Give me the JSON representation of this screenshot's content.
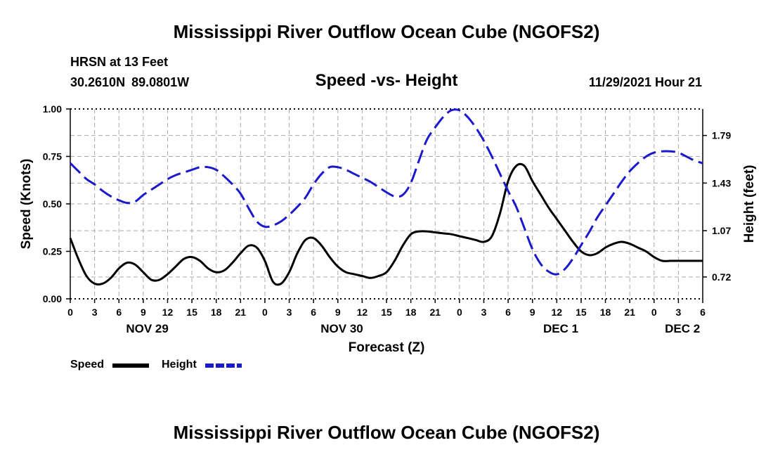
{
  "header": {
    "title": "Mississippi River Outflow Ocean Cube (NGOFS2)",
    "station": "HRSN at 13 Feet",
    "coords": "30.2610N  89.0801W",
    "subtitle": "Speed -vs- Height",
    "datetime": "11/29/2021 Hour 21"
  },
  "footer": {
    "title": "Mississippi River Outflow Ocean Cube (NGOFS2)"
  },
  "legend": {
    "speed_label": "Speed",
    "height_label": "Height"
  },
  "colors": {
    "speed": "#000000",
    "height": "#1a1acc",
    "grid": "#aaaaaa"
  },
  "chart_data": {
    "type": "line",
    "title": "Speed -vs- Height",
    "xlabel": "Forecast (Z)",
    "ylabel": "Speed (Knots)",
    "y2label": "Height (feet)",
    "xlim": [
      0,
      78
    ],
    "ylim": [
      0,
      1
    ],
    "y2lim": [
      0.555,
      1.99
    ],
    "x_ticks": [
      0,
      3,
      6,
      9,
      12,
      15,
      18,
      21,
      24,
      27,
      30,
      33,
      36,
      39,
      42,
      45,
      48,
      51,
      54,
      57,
      60,
      63,
      66,
      69,
      72,
      75,
      78
    ],
    "x_tick_labels": [
      "0",
      "3",
      "6",
      "9",
      "12",
      "15",
      "18",
      "21",
      "0",
      "3",
      "6",
      "9",
      "12",
      "15",
      "18",
      "21",
      "0",
      "3",
      "6",
      "9",
      "12",
      "15",
      "18",
      "21",
      "0",
      "3",
      "6"
    ],
    "day_labels": [
      {
        "x": 9.5,
        "label": "NOV 29"
      },
      {
        "x": 33.5,
        "label": "NOV 30"
      },
      {
        "x": 60.5,
        "label": "DEC 1"
      },
      {
        "x": 75.5,
        "label": "DEC 2"
      }
    ],
    "y_ticks": [
      0,
      0.25,
      0.5,
      0.75,
      1.0
    ],
    "y_tick_labels": [
      "0.00",
      "0.25",
      "0.50",
      "0.75",
      "1.00"
    ],
    "y2_ticks": [
      0.72,
      1.07,
      1.43,
      1.79
    ],
    "y2_tick_labels": [
      "0.72",
      "1.07",
      "1.43",
      "1.79"
    ],
    "grid": true,
    "series": [
      {
        "name": "Speed",
        "axis": "left",
        "style": "solid",
        "x": [
          0,
          1,
          2,
          3,
          4,
          5,
          6,
          7,
          8,
          9,
          10,
          11,
          12,
          13,
          14,
          15,
          16,
          17,
          18,
          19,
          20,
          21,
          22,
          23,
          24,
          25,
          26,
          27,
          28,
          29,
          30,
          31,
          32,
          33,
          34,
          35,
          36,
          37,
          38,
          39,
          40,
          41,
          42,
          43,
          44,
          45,
          46,
          47,
          48,
          49,
          50,
          51,
          52,
          53,
          54,
          55,
          56,
          57,
          58,
          59,
          60,
          61,
          62,
          63,
          64,
          65,
          66,
          67,
          68,
          69,
          70,
          71,
          72,
          73,
          74,
          75,
          76,
          77,
          78
        ],
        "values": [
          0.32,
          0.21,
          0.12,
          0.08,
          0.08,
          0.11,
          0.16,
          0.19,
          0.18,
          0.14,
          0.1,
          0.1,
          0.13,
          0.17,
          0.21,
          0.22,
          0.2,
          0.16,
          0.14,
          0.15,
          0.19,
          0.24,
          0.28,
          0.27,
          0.2,
          0.09,
          0.08,
          0.14,
          0.24,
          0.31,
          0.32,
          0.28,
          0.22,
          0.17,
          0.14,
          0.13,
          0.12,
          0.11,
          0.12,
          0.14,
          0.2,
          0.28,
          0.34,
          0.355,
          0.355,
          0.35,
          0.345,
          0.34,
          0.33,
          0.32,
          0.31,
          0.3,
          0.33,
          0.45,
          0.62,
          0.7,
          0.7,
          0.62,
          0.55,
          0.48,
          0.42,
          0.36,
          0.3,
          0.25,
          0.23,
          0.24,
          0.27,
          0.29,
          0.3,
          0.29,
          0.27,
          0.25,
          0.22,
          0.2,
          0.2,
          0.2,
          0.2,
          0.2,
          0.2
        ]
      },
      {
        "name": "Height",
        "axis": "right",
        "style": "dashed",
        "x": [
          0,
          1,
          2,
          3,
          4,
          5,
          6,
          7,
          8,
          9,
          10,
          11,
          12,
          13,
          14,
          15,
          16,
          17,
          18,
          19,
          20,
          21,
          22,
          23,
          24,
          25,
          26,
          27,
          28,
          29,
          30,
          31,
          32,
          33,
          34,
          35,
          36,
          37,
          38,
          39,
          40,
          41,
          42,
          43,
          44,
          45,
          46,
          47,
          48,
          49,
          50,
          51,
          52,
          53,
          54,
          55,
          56,
          57,
          58,
          59,
          60,
          61,
          62,
          63,
          64,
          65,
          66,
          67,
          68,
          69,
          70,
          71,
          72,
          73,
          74,
          75,
          76,
          77,
          78
        ],
        "values": [
          1.58,
          1.52,
          1.46,
          1.42,
          1.37,
          1.33,
          1.3,
          1.28,
          1.29,
          1.34,
          1.38,
          1.42,
          1.46,
          1.49,
          1.51,
          1.53,
          1.55,
          1.55,
          1.53,
          1.48,
          1.42,
          1.35,
          1.24,
          1.14,
          1.1,
          1.11,
          1.14,
          1.19,
          1.25,
          1.32,
          1.42,
          1.5,
          1.55,
          1.55,
          1.53,
          1.5,
          1.47,
          1.44,
          1.4,
          1.36,
          1.33,
          1.34,
          1.43,
          1.6,
          1.76,
          1.85,
          1.93,
          1.98,
          1.98,
          1.93,
          1.85,
          1.75,
          1.63,
          1.5,
          1.37,
          1.25,
          1.09,
          0.93,
          0.82,
          0.76,
          0.74,
          0.78,
          0.86,
          0.96,
          1.06,
          1.17,
          1.26,
          1.35,
          1.44,
          1.52,
          1.58,
          1.63,
          1.66,
          1.67,
          1.67,
          1.66,
          1.63,
          1.6,
          1.58
        ]
      }
    ]
  }
}
